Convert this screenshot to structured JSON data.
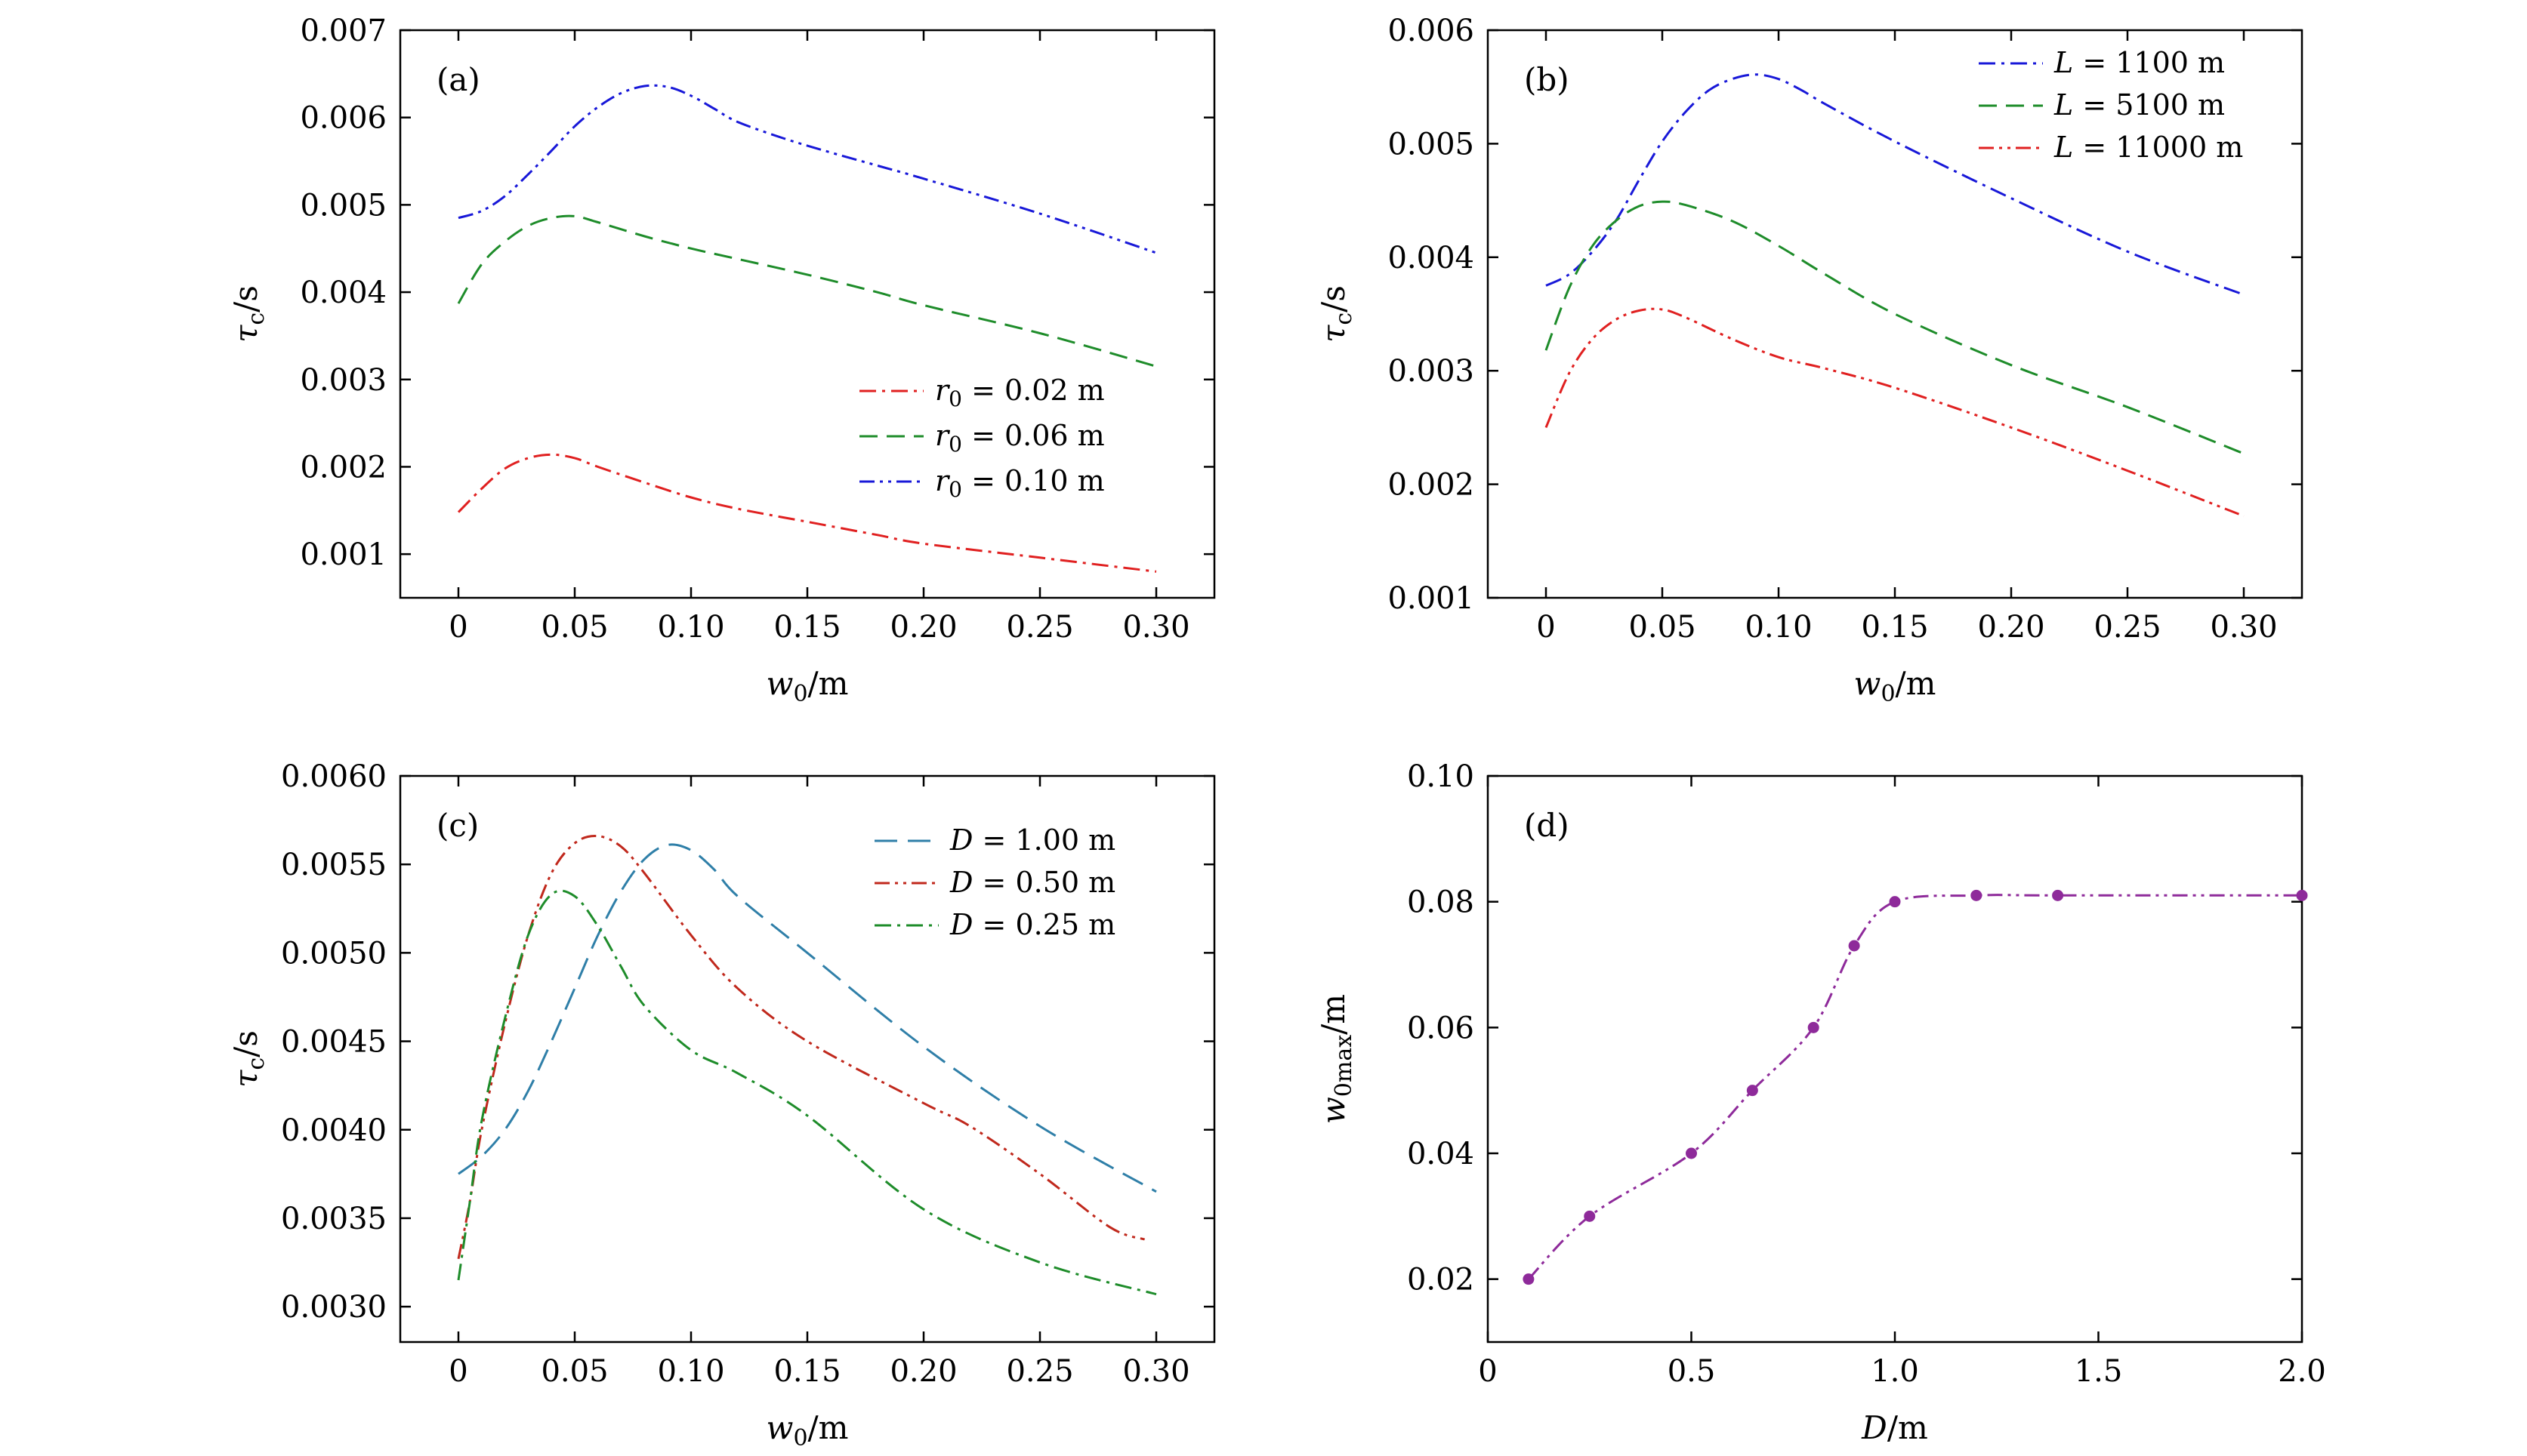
{
  "chart_data": [
    {
      "type": "line",
      "panel": "(a)",
      "xlabel_var": "w",
      "xlabel_sub": "0",
      "xlabel_unit": "/m",
      "ylabel_var": "τ",
      "ylabel_sub": "c",
      "ylabel_unit": "/s",
      "xlim": [
        -0.025,
        0.325
      ],
      "ylim": [
        0.0005,
        0.007
      ],
      "xticks": [
        0,
        0.05,
        0.1,
        0.15,
        0.2,
        0.25,
        0.3
      ],
      "xtick_labels": [
        "0",
        "0.05",
        "0.10",
        "0.15",
        "0.20",
        "0.25",
        "0.30"
      ],
      "yticks": [
        0.001,
        0.002,
        0.003,
        0.004,
        0.005,
        0.006,
        0.007
      ],
      "ytick_labels": [
        "0.001",
        "0.002",
        "0.003",
        "0.004",
        "0.005",
        "0.006",
        "0.007"
      ],
      "legend_position": "lower-right",
      "series": [
        {
          "name": "r0 = 0.02 m",
          "legend_var": "r",
          "legend_sub": "0",
          "legend_rest": " = 0.02 m",
          "color": "#e02020",
          "dash": "dashdot",
          "x": [
            0,
            0.01,
            0.02,
            0.03,
            0.04,
            0.05,
            0.06,
            0.08,
            0.1,
            0.12,
            0.15,
            0.18,
            0.2,
            0.25,
            0.3
          ],
          "y": [
            0.00148,
            0.00175,
            0.00198,
            0.0021,
            0.00214,
            0.0021,
            0.002,
            0.00182,
            0.00165,
            0.00152,
            0.00137,
            0.00122,
            0.00112,
            0.00096,
            0.0008
          ]
        },
        {
          "name": "r0 = 0.06 m",
          "legend_var": "r",
          "legend_sub": "0",
          "legend_rest": " = 0.06 m",
          "color": "#1e8c2a",
          "dash": "dashed",
          "x": [
            0,
            0.01,
            0.02,
            0.03,
            0.04,
            0.05,
            0.06,
            0.08,
            0.1,
            0.12,
            0.15,
            0.18,
            0.2,
            0.25,
            0.3
          ],
          "y": [
            0.00387,
            0.00432,
            0.00458,
            0.00476,
            0.00485,
            0.00487,
            0.0048,
            0.00464,
            0.0045,
            0.00438,
            0.0042,
            0.004,
            0.00385,
            0.00353,
            0.00315
          ]
        },
        {
          "name": "r0 = 0.10 m",
          "legend_var": "r",
          "legend_sub": "0",
          "legend_rest": " = 0.10 m",
          "color": "#1818d8",
          "dash": "dashdotdot",
          "x": [
            0,
            0.01,
            0.02,
            0.03,
            0.04,
            0.05,
            0.06,
            0.07,
            0.08,
            0.09,
            0.1,
            0.11,
            0.12,
            0.14,
            0.16,
            0.18,
            0.2,
            0.25,
            0.3
          ],
          "y": [
            0.00485,
            0.00493,
            0.0051,
            0.00535,
            0.00562,
            0.0059,
            0.00612,
            0.00628,
            0.00636,
            0.00635,
            0.00625,
            0.0061,
            0.00595,
            0.00576,
            0.0056,
            0.00545,
            0.0053,
            0.0049,
            0.00445
          ]
        }
      ]
    },
    {
      "type": "line",
      "panel": "(b)",
      "xlabel_var": "w",
      "xlabel_sub": "0",
      "xlabel_unit": "/m",
      "ylabel_var": "τ",
      "ylabel_sub": "c",
      "ylabel_unit": "/s",
      "xlim": [
        -0.025,
        0.325
      ],
      "ylim": [
        0.001,
        0.006
      ],
      "xticks": [
        0,
        0.05,
        0.1,
        0.15,
        0.2,
        0.25,
        0.3
      ],
      "xtick_labels": [
        "0",
        "0.05",
        "0.10",
        "0.15",
        "0.20",
        "0.25",
        "0.30"
      ],
      "yticks": [
        0.001,
        0.002,
        0.003,
        0.004,
        0.005,
        0.006
      ],
      "ytick_labels": [
        "0.001",
        "0.002",
        "0.003",
        "0.004",
        "0.005",
        "0.006"
      ],
      "legend_position": "top-right",
      "series": [
        {
          "name": "L = 1100 m",
          "legend_var": "L",
          "legend_sub": "",
          "legend_rest": " = 1100 m",
          "color": "#1818d8",
          "dash": "dashdot",
          "x": [
            0,
            0.01,
            0.02,
            0.03,
            0.04,
            0.05,
            0.06,
            0.07,
            0.08,
            0.09,
            0.1,
            0.11,
            0.12,
            0.15,
            0.2,
            0.25,
            0.3
          ],
          "y": [
            0.00375,
            0.00385,
            0.00405,
            0.00432,
            0.00468,
            0.00502,
            0.00528,
            0.00547,
            0.00557,
            0.00561,
            0.00557,
            0.00547,
            0.00535,
            0.00502,
            0.00452,
            0.00405,
            0.00367
          ]
        },
        {
          "name": "L = 5100 m",
          "legend_var": "L",
          "legend_sub": "",
          "legend_rest": " = 5100 m",
          "color": "#1e8c2a",
          "dash": "dashed",
          "x": [
            0,
            0.01,
            0.02,
            0.03,
            0.04,
            0.05,
            0.06,
            0.08,
            0.1,
            0.12,
            0.15,
            0.2,
            0.25,
            0.3
          ],
          "y": [
            0.00318,
            0.00373,
            0.0041,
            0.00432,
            0.00445,
            0.00449,
            0.00446,
            0.00432,
            0.0041,
            0.00385,
            0.0035,
            0.00305,
            0.00268,
            0.00227
          ]
        },
        {
          "name": "L = 11000 m",
          "legend_var": "L",
          "legend_sub": "",
          "legend_rest": " = 11000 m",
          "color": "#e02020",
          "dash": "dashdotdot",
          "x": [
            0,
            0.01,
            0.02,
            0.03,
            0.04,
            0.05,
            0.06,
            0.08,
            0.1,
            0.12,
            0.15,
            0.2,
            0.25,
            0.3
          ],
          "y": [
            0.0025,
            0.00298,
            0.00328,
            0.00345,
            0.00353,
            0.00354,
            0.00347,
            0.00328,
            0.00312,
            0.00302,
            0.00285,
            0.0025,
            0.00212,
            0.00172
          ]
        }
      ]
    },
    {
      "type": "line",
      "panel": "(c)",
      "xlabel_var": "w",
      "xlabel_sub": "0",
      "xlabel_unit": "/m",
      "ylabel_var": "τ",
      "ylabel_sub": "c",
      "ylabel_unit": "/s",
      "xlim": [
        -0.025,
        0.325
      ],
      "ylim": [
        0.0028,
        0.006
      ],
      "xticks": [
        0,
        0.05,
        0.1,
        0.15,
        0.2,
        0.25,
        0.3
      ],
      "xtick_labels": [
        "0",
        "0.05",
        "0.10",
        "0.15",
        "0.20",
        "0.25",
        "0.30"
      ],
      "yticks": [
        0.003,
        0.0035,
        0.004,
        0.0045,
        0.005,
        0.0055,
        0.006
      ],
      "ytick_labels": [
        "0.0030",
        "0.0035",
        "0.0040",
        "0.0045",
        "0.0050",
        "0.0055",
        "0.0060"
      ],
      "legend_position": "top-right",
      "series": [
        {
          "name": "D = 1.00 m",
          "legend_var": "D",
          "legend_sub": "",
          "legend_rest": " = 1.00 m",
          "color": "#2f7fa8",
          "dash": "longdash",
          "x": [
            0,
            0.01,
            0.02,
            0.03,
            0.04,
            0.05,
            0.06,
            0.07,
            0.08,
            0.09,
            0.1,
            0.11,
            0.12,
            0.15,
            0.2,
            0.25,
            0.3
          ],
          "y": [
            0.00375,
            0.00385,
            0.004,
            0.00422,
            0.0045,
            0.0048,
            0.0051,
            0.00535,
            0.00553,
            0.00561,
            0.00558,
            0.00547,
            0.00532,
            0.005,
            0.00447,
            0.00402,
            0.00365
          ]
        },
        {
          "name": "D = 0.50 m",
          "legend_var": "D",
          "legend_sub": "",
          "legend_rest": " = 0.50 m",
          "color": "#c0281c",
          "dash": "dashdotdot",
          "x": [
            0,
            0.005,
            0.01,
            0.02,
            0.03,
            0.04,
            0.05,
            0.06,
            0.07,
            0.08,
            0.1,
            0.12,
            0.15,
            0.2,
            0.22,
            0.25,
            0.28,
            0.295
          ],
          "y": [
            0.00327,
            0.0036,
            0.004,
            0.0046,
            0.0051,
            0.00545,
            0.00562,
            0.00566,
            0.0056,
            0.00545,
            0.0051,
            0.0048,
            0.0045,
            0.00415,
            0.00402,
            0.00375,
            0.00345,
            0.00338
          ]
        },
        {
          "name": "D = 0.25 m",
          "legend_var": "D",
          "legend_sub": "",
          "legend_rest": " = 0.25 m",
          "color": "#1e8c2a",
          "dash": "dashdot",
          "x": [
            0,
            0.005,
            0.01,
            0.02,
            0.03,
            0.04,
            0.05,
            0.06,
            0.07,
            0.08,
            0.1,
            0.12,
            0.15,
            0.2,
            0.25,
            0.3
          ],
          "y": [
            0.00315,
            0.0036,
            0.00405,
            0.00463,
            0.0051,
            0.00533,
            0.00532,
            0.00515,
            0.00492,
            0.0047,
            0.00445,
            0.00432,
            0.00408,
            0.00355,
            0.00325,
            0.00307
          ]
        }
      ]
    },
    {
      "type": "line",
      "panel": "(d)",
      "xlabel_var": "D",
      "xlabel_sub": "",
      "xlabel_unit": "/m",
      "ylabel_var": "w",
      "ylabel_sub": "0max",
      "ylabel_unit": "/m",
      "xlim": [
        0,
        2.0
      ],
      "ylim": [
        0.01,
        0.1
      ],
      "xticks": [
        0,
        0.5,
        1.0,
        1.5,
        2.0
      ],
      "xtick_labels": [
        "0",
        "0.5",
        "1.0",
        "1.5",
        "2.0"
      ],
      "yticks": [
        0.02,
        0.04,
        0.06,
        0.08,
        0.1
      ],
      "ytick_labels": [
        "0.02",
        "0.04",
        "0.06",
        "0.08",
        "0.10"
      ],
      "legend_position": "none",
      "series": [
        {
          "name": "w0max",
          "color": "#8e2a9a",
          "dash": "dashdotdot",
          "markers": true,
          "x": [
            0.1,
            0.25,
            0.5,
            0.65,
            0.8,
            0.9,
            1.0,
            1.2,
            1.4,
            2.0
          ],
          "y": [
            0.02,
            0.03,
            0.04,
            0.05,
            0.06,
            0.073,
            0.08,
            0.081,
            0.081,
            0.081
          ]
        }
      ]
    }
  ]
}
